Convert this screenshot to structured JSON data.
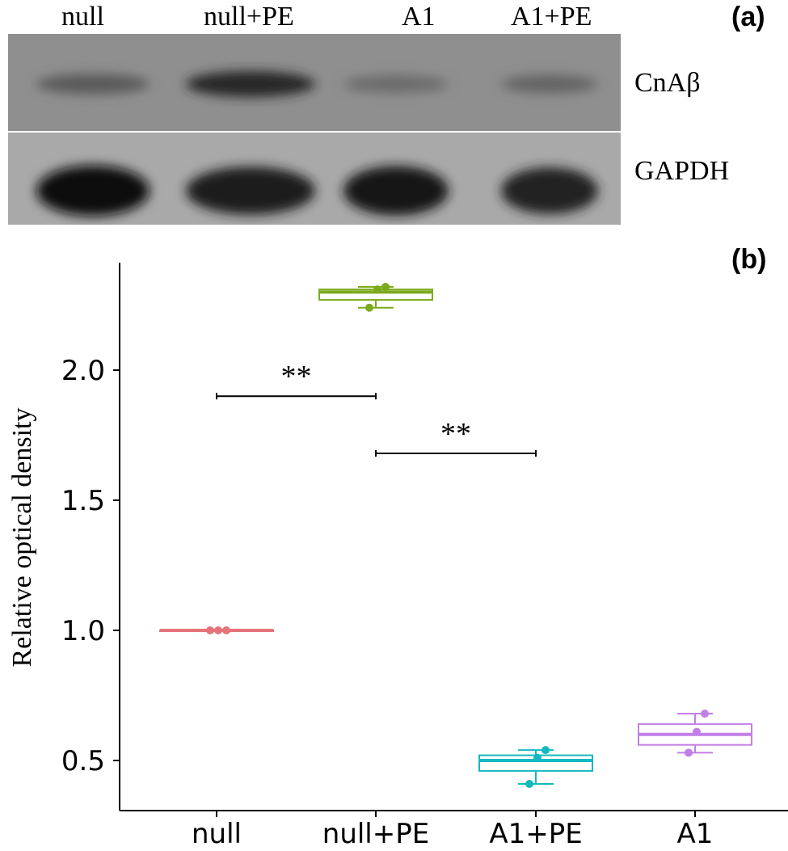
{
  "panel_a": {
    "label": "(a)",
    "lanes": [
      "null",
      "null+PE",
      "A1",
      "A1+PE"
    ],
    "rows": [
      "CnAβ",
      "GAPDH"
    ],
    "band_intensity": {
      "CnAβ": [
        0.35,
        0.75,
        0.2,
        0.25
      ],
      "GAPDH": [
        0.95,
        0.85,
        0.9,
        0.8
      ]
    }
  },
  "panel_b": {
    "label": "(b)"
  },
  "chart_data": {
    "type": "box",
    "title": "",
    "xlabel": "",
    "ylabel": "Relative optical density",
    "categories": [
      "null",
      "null+PE",
      "A1+PE",
      "A1"
    ],
    "yticks": [
      0.5,
      1.0,
      1.5,
      2.0
    ],
    "ytick_labels": [
      "0.5",
      "1.0",
      "1.5",
      "2.0"
    ],
    "ylim": [
      0.33,
      2.4
    ],
    "grid": false,
    "legend": "none",
    "series": [
      {
        "category": "null",
        "color": "#e5737a",
        "min": 1.0,
        "q1": 1.0,
        "median": 1.0,
        "q3": 1.0,
        "max": 1.0,
        "points": [
          1.0,
          1.0,
          1.0
        ]
      },
      {
        "category": "null+PE",
        "color": "#7caa1e",
        "min": 2.24,
        "q1": 2.27,
        "median": 2.3,
        "q3": 2.31,
        "max": 2.32,
        "points": [
          2.24,
          2.31,
          2.32
        ]
      },
      {
        "category": "A1+PE",
        "color": "#14b8c0",
        "min": 0.41,
        "q1": 0.46,
        "median": 0.5,
        "q3": 0.52,
        "max": 0.54,
        "points": [
          0.41,
          0.51,
          0.54
        ]
      },
      {
        "category": "A1",
        "color": "#c17fe6",
        "min": 0.53,
        "q1": 0.56,
        "median": 0.6,
        "q3": 0.64,
        "max": 0.68,
        "points": [
          0.53,
          0.61,
          0.68
        ]
      }
    ],
    "annotations": [
      {
        "from": "null",
        "to": "null+PE",
        "y": 1.9,
        "text": "**"
      },
      {
        "from": "null+PE",
        "to": "A1+PE",
        "y": 1.68,
        "text": "**"
      }
    ]
  }
}
